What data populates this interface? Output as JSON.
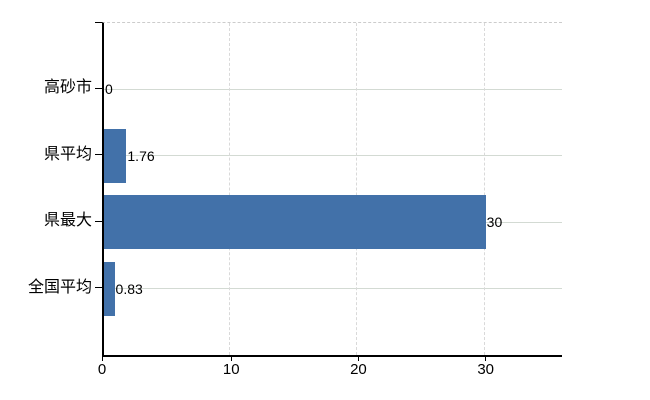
{
  "chart_data": {
    "type": "bar",
    "orientation": "horizontal",
    "title": "",
    "xlabel": "",
    "ylabel": "",
    "categories": [
      "高砂市",
      "県平均",
      "県最大",
      "全国平均"
    ],
    "values": [
      0,
      1.76,
      30,
      0.83
    ],
    "value_labels": [
      "0",
      "1.76",
      "30",
      "0.83"
    ],
    "xlim": [
      0,
      36
    ],
    "xticks": [
      0,
      10,
      20,
      30
    ],
    "xtick_labels": [
      "0",
      "10",
      "20",
      "30"
    ],
    "grid": "both",
    "legend": "none",
    "colors": {
      "bar": "#4271a9",
      "h_gridline": "#d3dad3",
      "v_gridline": "#d9d9d9",
      "axis": "#000000",
      "top_border": "#cccccc",
      "text": "#000000",
      "background": "#ffffff"
    }
  }
}
